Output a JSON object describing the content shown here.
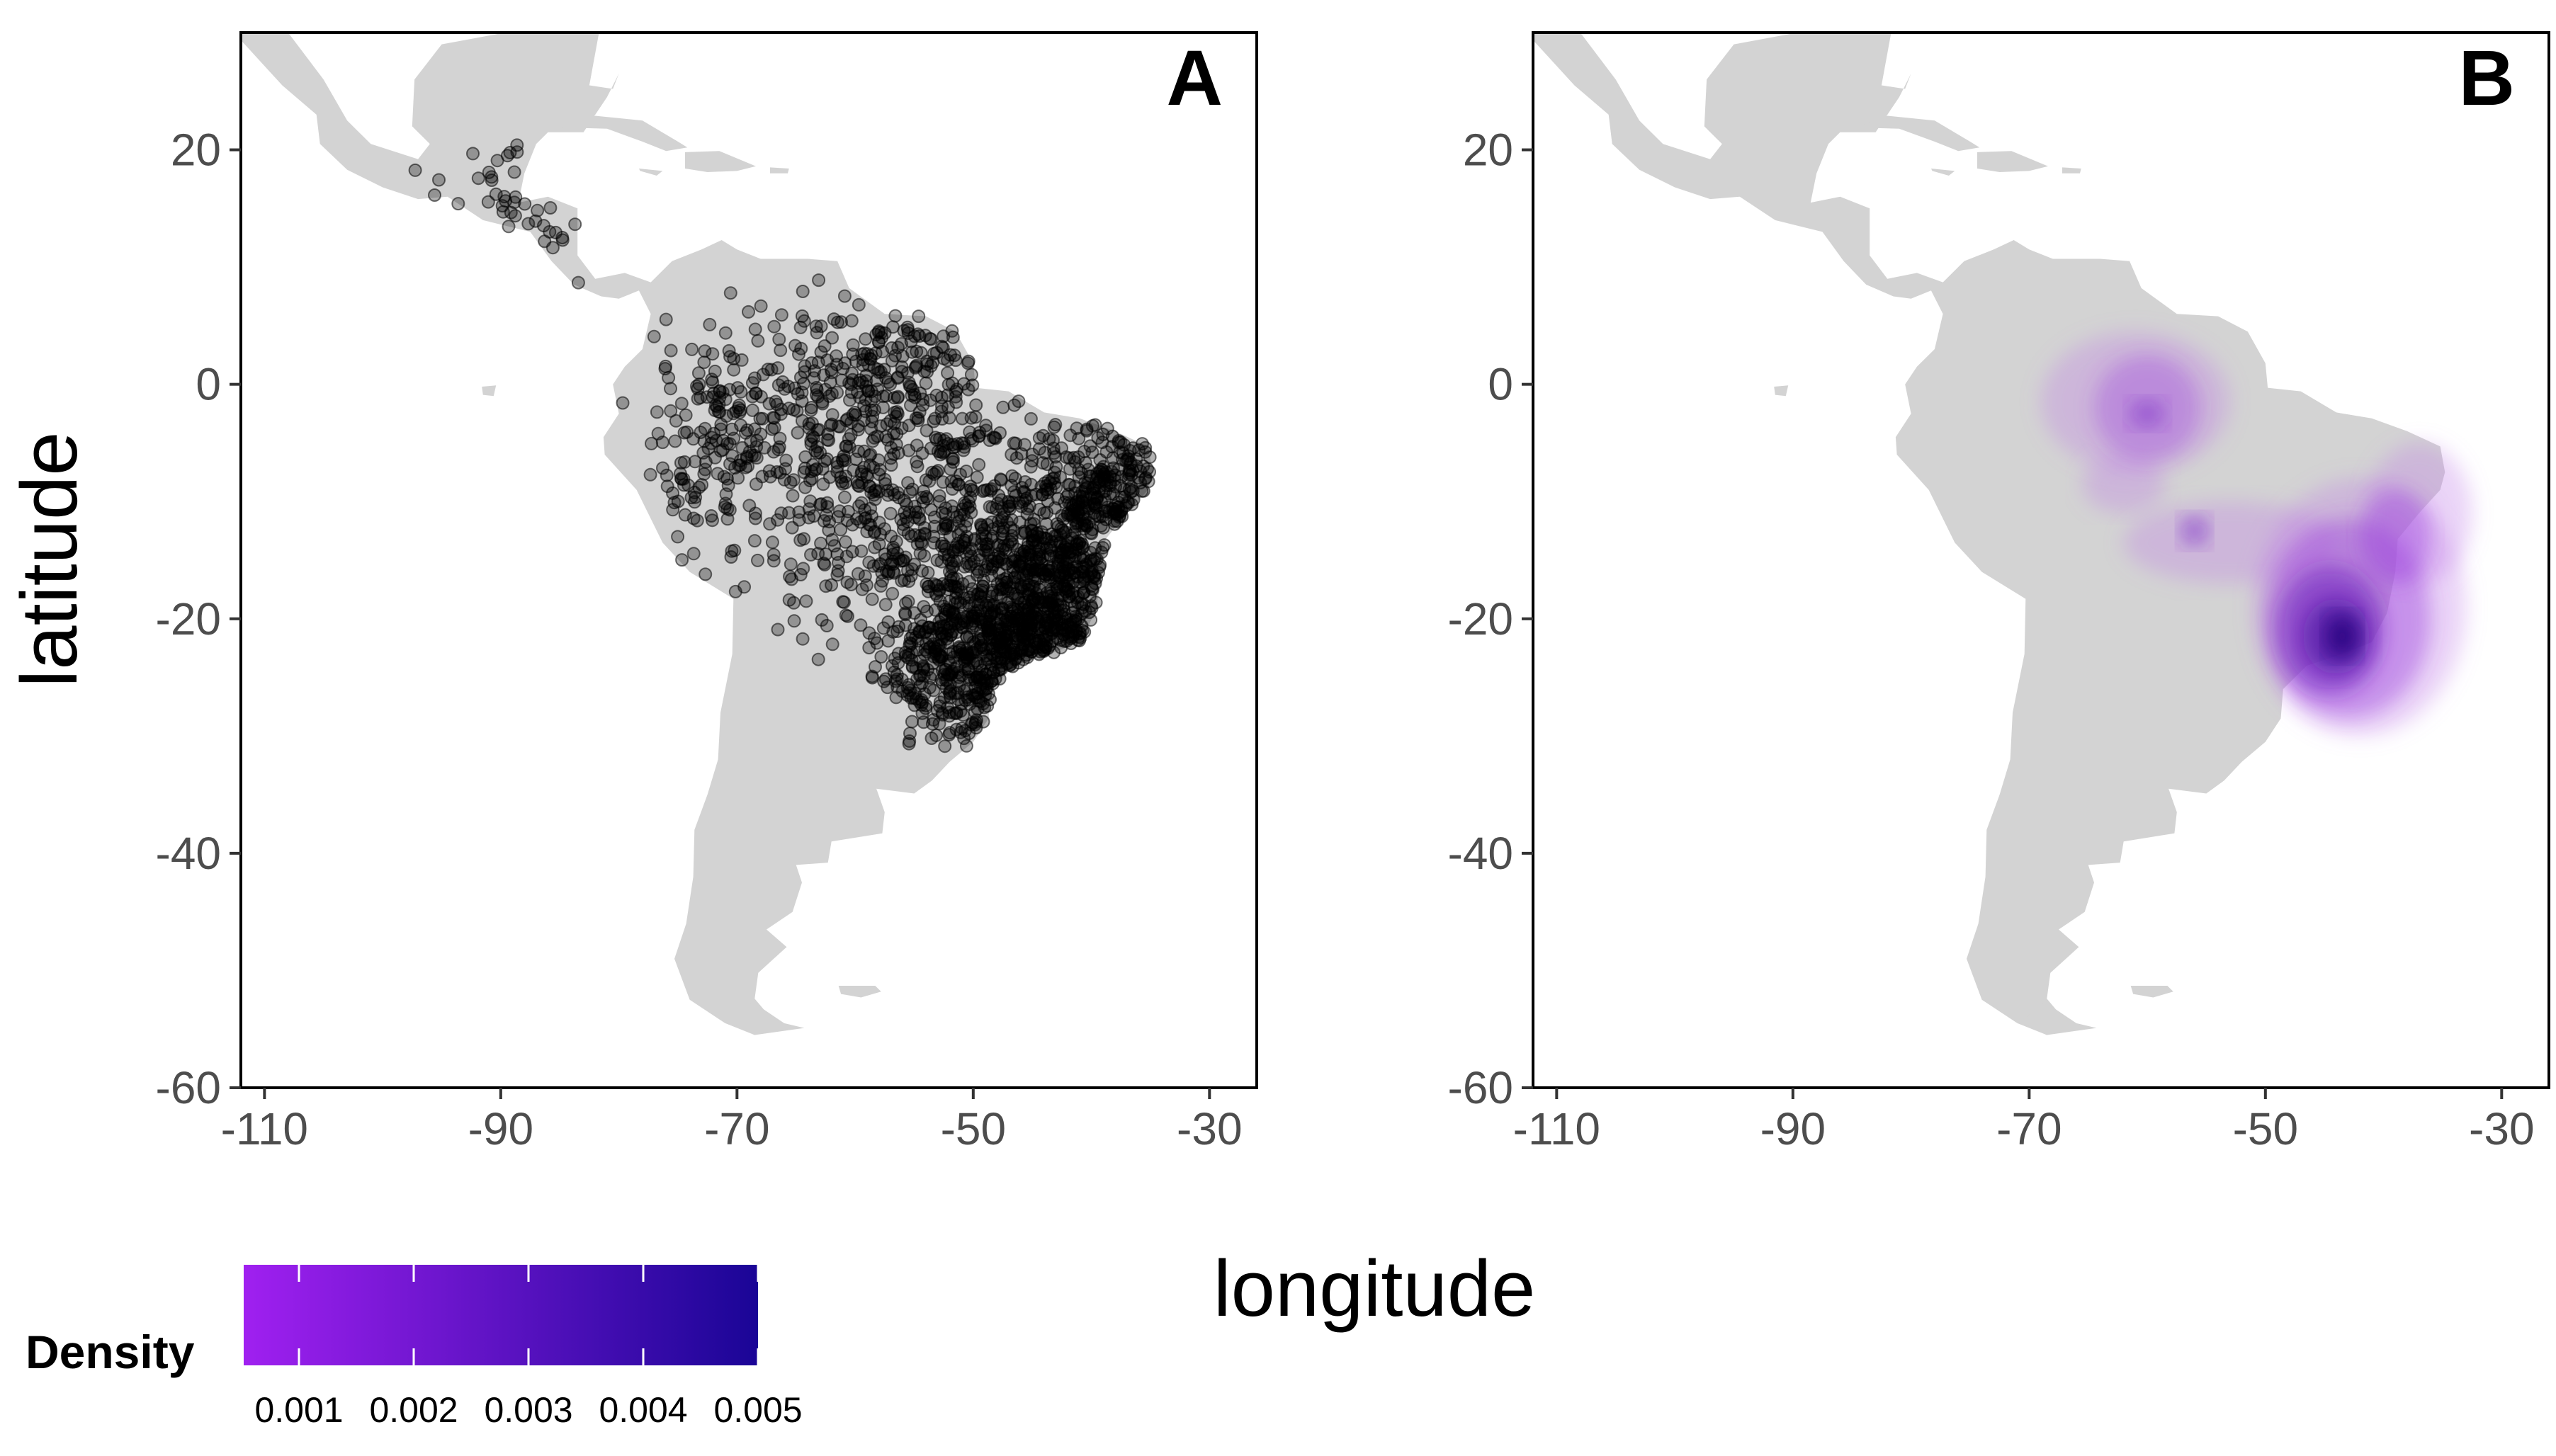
{
  "figure": {
    "panels": [
      {
        "label": "A",
        "layer": "points"
      },
      {
        "label": "B",
        "layer": "density"
      }
    ],
    "xlabel": "longitude",
    "ylabel": "latitude",
    "legend": {
      "title": "Density",
      "labels": [
        "0.001",
        "0.002",
        "0.003",
        "0.004",
        "0.005"
      ],
      "colors": [
        "#a020f0",
        "#1a0596"
      ]
    }
  },
  "chart_data": [
    {
      "type": "scatter",
      "panel": "A",
      "xlim": [
        -112,
        -26
      ],
      "ylim": [
        -60,
        30
      ],
      "xticks": [
        -110,
        -90,
        -70,
        -50,
        -30
      ],
      "yticks": [
        20,
        0,
        -20,
        -40,
        -60
      ],
      "land_color": "#d3d3d3",
      "point_color": "#000000",
      "point_alpha": 0.3
    },
    {
      "type": "heatmap",
      "panel": "B",
      "xlim": [
        -112,
        -26
      ],
      "ylim": [
        -60,
        30
      ],
      "xticks": [
        -110,
        -90,
        -70,
        -50,
        -30
      ],
      "yticks": [
        20,
        0,
        -20,
        -40,
        -60
      ],
      "land_color": "#d3d3d3",
      "density_hotspots": [
        {
          "lon": -44,
          "lat": -21,
          "level": 0.005
        },
        {
          "lon": -60,
          "lat": -3,
          "level": 0.002
        },
        {
          "lon": -56,
          "lat": -12.5,
          "level": 0.002
        }
      ]
    }
  ]
}
